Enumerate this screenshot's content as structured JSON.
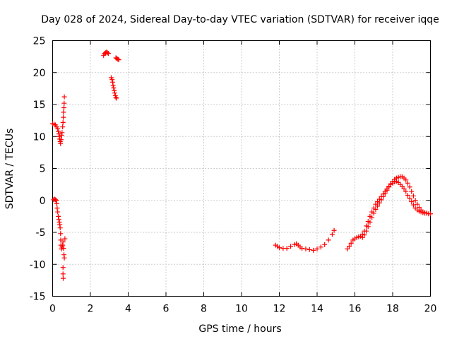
{
  "chart_data": {
    "type": "scatter",
    "title": "Day 028 of 2024, Sidereal Day-to-day VTEC variation (SDTVAR) for receiver iqqe",
    "xlabel": "GPS time / hours",
    "ylabel": "SDTVAR / TECUs",
    "xlim": [
      0,
      20
    ],
    "ylim": [
      -15,
      25
    ],
    "xticks": [
      0,
      2,
      4,
      6,
      8,
      10,
      12,
      14,
      16,
      18,
      20
    ],
    "yticks": [
      -15,
      -10,
      -5,
      0,
      5,
      10,
      15,
      20,
      25
    ],
    "grid": true,
    "marker": "plus",
    "color": "#ff0000",
    "series": [
      {
        "name": "arc-1",
        "points": [
          [
            0.0,
            12.0
          ],
          [
            0.08,
            11.9
          ],
          [
            0.15,
            11.8
          ],
          [
            0.22,
            11.5
          ],
          [
            0.27,
            11.2
          ],
          [
            0.3,
            10.8
          ],
          [
            0.33,
            10.4
          ],
          [
            0.36,
            10.0
          ],
          [
            0.38,
            9.6
          ],
          [
            0.4,
            9.2
          ],
          [
            0.42,
            8.9
          ],
          [
            0.45,
            9.5
          ],
          [
            0.48,
            10.2
          ],
          [
            0.5,
            10.6
          ],
          [
            0.53,
            11.5
          ],
          [
            0.55,
            12.2
          ],
          [
            0.57,
            13.0
          ],
          [
            0.58,
            13.8
          ],
          [
            0.6,
            14.5
          ],
          [
            0.61,
            15.2
          ],
          [
            0.62,
            16.2
          ]
        ]
      },
      {
        "name": "arc-2",
        "points": [
          [
            0.05,
            0.1
          ],
          [
            0.1,
            0.2
          ],
          [
            0.15,
            0.1
          ],
          [
            0.2,
            0.0
          ],
          [
            0.22,
            -0.5
          ],
          [
            0.24,
            -1.2
          ],
          [
            0.27,
            -1.8
          ],
          [
            0.3,
            -2.5
          ],
          [
            0.33,
            -3.0
          ],
          [
            0.36,
            -3.4
          ],
          [
            0.38,
            -3.8
          ],
          [
            0.4,
            -4.3
          ],
          [
            0.42,
            -5.2
          ],
          [
            0.43,
            -6.2
          ],
          [
            0.44,
            -7.0
          ],
          [
            0.46,
            -7.6
          ],
          [
            0.5,
            -7.3
          ],
          [
            0.53,
            -7.0
          ],
          [
            0.55,
            -6.5
          ],
          [
            0.58,
            -7.5
          ],
          [
            0.6,
            -8.5
          ],
          [
            0.62,
            -9.0
          ],
          [
            0.65,
            -6.0
          ],
          [
            0.55,
            -10.5
          ],
          [
            0.55,
            -11.5
          ],
          [
            0.56,
            -12.2
          ]
        ]
      },
      {
        "name": "arc-3",
        "points": [
          [
            2.7,
            22.7
          ],
          [
            2.75,
            23.0
          ],
          [
            2.8,
            23.1
          ],
          [
            2.85,
            23.2
          ],
          [
            2.9,
            23.1
          ],
          [
            2.95,
            23.0
          ]
        ]
      },
      {
        "name": "arc-4",
        "points": [
          [
            3.1,
            19.2
          ],
          [
            3.15,
            18.9
          ],
          [
            3.18,
            18.5
          ],
          [
            3.2,
            18.0
          ],
          [
            3.23,
            17.6
          ],
          [
            3.26,
            17.2
          ],
          [
            3.29,
            16.8
          ],
          [
            3.32,
            16.4
          ],
          [
            3.35,
            16.1
          ],
          [
            3.38,
            16.0
          ],
          [
            3.35,
            22.3
          ],
          [
            3.4,
            22.2
          ],
          [
            3.45,
            22.1
          ],
          [
            3.5,
            22.0
          ]
        ]
      },
      {
        "name": "arc-5",
        "points": [
          [
            11.8,
            -7.0
          ],
          [
            11.9,
            -7.2
          ],
          [
            12.0,
            -7.4
          ],
          [
            12.2,
            -7.5
          ],
          [
            12.4,
            -7.5
          ],
          [
            12.6,
            -7.2
          ],
          [
            12.8,
            -6.9
          ],
          [
            12.9,
            -6.8
          ],
          [
            13.0,
            -7.0
          ],
          [
            13.1,
            -7.3
          ],
          [
            13.2,
            -7.5
          ],
          [
            13.4,
            -7.6
          ],
          [
            13.6,
            -7.7
          ],
          [
            13.8,
            -7.8
          ],
          [
            14.0,
            -7.6
          ],
          [
            14.2,
            -7.3
          ],
          [
            14.4,
            -6.9
          ],
          [
            14.6,
            -6.2
          ],
          [
            14.8,
            -5.3
          ],
          [
            14.9,
            -4.7
          ]
        ]
      },
      {
        "name": "arc-6",
        "points": [
          [
            15.6,
            -7.6
          ],
          [
            15.7,
            -7.2
          ],
          [
            15.8,
            -6.7
          ],
          [
            15.9,
            -6.2
          ],
          [
            16.0,
            -6.0
          ],
          [
            16.1,
            -5.8
          ],
          [
            16.2,
            -5.7
          ],
          [
            16.3,
            -5.6
          ],
          [
            16.4,
            -5.3
          ],
          [
            16.5,
            -4.8
          ],
          [
            16.6,
            -4.0
          ],
          [
            16.7,
            -3.3
          ],
          [
            16.8,
            -2.5
          ],
          [
            16.9,
            -1.8
          ],
          [
            17.0,
            -1.2
          ],
          [
            17.1,
            -0.6
          ],
          [
            17.2,
            -0.2
          ],
          [
            17.3,
            0.2
          ],
          [
            17.4,
            0.6
          ],
          [
            17.5,
            1.0
          ],
          [
            17.6,
            1.4
          ],
          [
            17.7,
            1.8
          ],
          [
            17.8,
            2.2
          ],
          [
            17.9,
            2.5
          ],
          [
            18.0,
            2.7
          ],
          [
            18.1,
            2.9
          ],
          [
            18.2,
            3.0
          ],
          [
            18.3,
            2.8
          ],
          [
            18.4,
            2.5
          ],
          [
            18.5,
            2.2
          ],
          [
            18.6,
            1.8
          ],
          [
            18.7,
            1.4
          ],
          [
            18.8,
            0.8
          ],
          [
            18.9,
            0.3
          ],
          [
            19.0,
            -0.2
          ],
          [
            19.1,
            -0.7
          ],
          [
            19.2,
            -1.2
          ],
          [
            19.3,
            -1.5
          ],
          [
            19.4,
            -1.7
          ],
          [
            19.5,
            -1.8
          ],
          [
            19.6,
            -1.9
          ],
          [
            19.7,
            -2.0
          ],
          [
            19.8,
            -2.0
          ],
          [
            19.9,
            -2.1
          ],
          [
            20.0,
            -2.1
          ]
        ]
      },
      {
        "name": "arc-7",
        "points": [
          [
            16.4,
            -5.8
          ],
          [
            16.5,
            -5.4
          ],
          [
            16.6,
            -4.8
          ],
          [
            16.7,
            -4.1
          ],
          [
            16.8,
            -3.4
          ],
          [
            16.9,
            -2.7
          ],
          [
            17.0,
            -2.0
          ],
          [
            17.1,
            -1.4
          ],
          [
            17.2,
            -0.9
          ],
          [
            17.3,
            -0.4
          ],
          [
            17.4,
            0.1
          ],
          [
            17.5,
            0.6
          ],
          [
            17.6,
            1.1
          ],
          [
            17.7,
            1.6
          ],
          [
            17.8,
            2.1
          ],
          [
            17.9,
            2.6
          ],
          [
            18.0,
            3.0
          ],
          [
            18.1,
            3.3
          ],
          [
            18.2,
            3.5
          ],
          [
            18.3,
            3.6
          ],
          [
            18.4,
            3.7
          ],
          [
            18.5,
            3.7
          ],
          [
            18.6,
            3.5
          ],
          [
            18.7,
            3.2
          ],
          [
            18.8,
            2.7
          ],
          [
            18.9,
            2.1
          ],
          [
            19.0,
            1.4
          ],
          [
            19.1,
            0.7
          ],
          [
            19.2,
            0.0
          ],
          [
            19.3,
            -0.6
          ],
          [
            19.4,
            -1.1
          ],
          [
            19.5,
            -1.5
          ],
          [
            19.6,
            -1.8
          ],
          [
            19.7,
            -1.9
          ],
          [
            19.8,
            -2.0
          ]
        ]
      }
    ]
  }
}
